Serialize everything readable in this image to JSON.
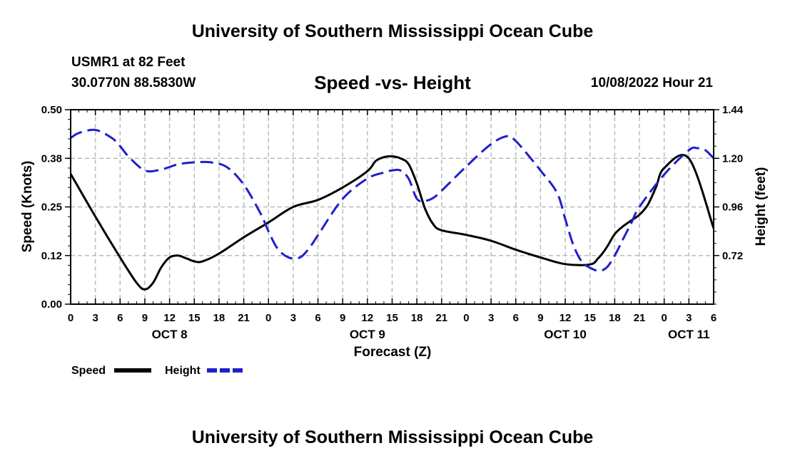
{
  "header": {
    "title": "University of Southern Mississippi Ocean Cube",
    "station": "USMR1 at 82 Feet",
    "coords": "30.0770N  88.5830W",
    "subtitle": "Speed -vs- Height",
    "datetime": "10/08/2022 Hour 21"
  },
  "footer": {
    "title": "University of Southern Mississippi Ocean Cube"
  },
  "colors": {
    "speed": "#000000",
    "height": "#1f1fcc",
    "grid": "#bbbbbb"
  },
  "chart_data": {
    "type": "line",
    "title": "Speed -vs- Height",
    "xlabel": "Forecast (Z)",
    "ylabel": "Speed (Knots)",
    "y2label": "Height (feet)",
    "x_range_hours": [
      0,
      78
    ],
    "x_ticks": [
      0,
      3,
      6,
      9,
      12,
      15,
      18,
      21,
      24,
      27,
      30,
      33,
      36,
      39,
      42,
      45,
      48,
      51,
      54,
      57,
      60,
      63,
      66,
      69,
      72,
      75,
      78
    ],
    "x_tick_labels": [
      "0",
      "3",
      "6",
      "9",
      "12",
      "15",
      "18",
      "21",
      "0",
      "3",
      "6",
      "9",
      "12",
      "15",
      "18",
      "21",
      "0",
      "3",
      "6",
      "9",
      "12",
      "15",
      "18",
      "21",
      "0",
      "3",
      "6"
    ],
    "date_labels": [
      {
        "hour": 12,
        "label": "OCT 8"
      },
      {
        "hour": 36,
        "label": "OCT 9"
      },
      {
        "hour": 60,
        "label": "OCT 10"
      },
      {
        "hour": 75,
        "label": "OCT 11"
      }
    ],
    "y_range": [
      0,
      0.5
    ],
    "y_ticks": [
      0,
      0.125,
      0.25,
      0.375,
      0.5
    ],
    "y_tick_labels": [
      "0.00",
      "0.12",
      "0.25",
      "0.38",
      "0.50"
    ],
    "y2_range": [
      0.48,
      1.44
    ],
    "y2_ticks": [
      0.72,
      0.96,
      1.2,
      1.44
    ],
    "y2_tick_labels": [
      "0.72",
      "0.96",
      "1.20",
      "1.44"
    ],
    "series": [
      {
        "name": "Speed",
        "axis": "left",
        "style": "solid",
        "x": [
          0,
          3,
          6,
          8,
          9,
          10,
          11,
          12,
          13,
          14,
          15,
          16,
          18,
          21,
          24,
          27,
          30,
          33,
          36,
          37,
          38,
          39,
          40,
          41,
          42,
          43,
          44,
          45,
          48,
          51,
          54,
          57,
          60,
          63,
          64,
          65,
          66,
          67,
          68,
          69,
          70,
          71,
          72,
          75,
          78
        ],
        "y": [
          0.335,
          0.225,
          0.12,
          0.055,
          0.038,
          0.055,
          0.095,
          0.12,
          0.125,
          0.118,
          0.11,
          0.11,
          0.13,
          0.172,
          0.21,
          0.25,
          0.268,
          0.3,
          0.342,
          0.368,
          0.378,
          0.38,
          0.375,
          0.36,
          0.31,
          0.245,
          0.205,
          0.19,
          0.178,
          0.163,
          0.14,
          0.12,
          0.103,
          0.102,
          0.118,
          0.145,
          0.18,
          0.2,
          0.215,
          0.23,
          0.255,
          0.3,
          0.35,
          0.375,
          0.195
        ]
      },
      {
        "name": "Height",
        "axis": "right",
        "style": "dashed",
        "x": [
          0,
          1,
          3,
          5,
          6,
          7,
          9,
          11,
          13,
          15,
          17,
          19,
          21,
          23,
          24,
          25,
          26,
          27,
          28,
          29,
          30,
          33,
          36,
          38,
          39,
          40,
          41,
          42,
          43,
          44,
          45,
          48,
          51,
          53,
          54,
          55,
          57,
          59,
          60,
          61,
          62,
          63,
          64,
          65,
          66,
          67,
          68,
          69,
          72,
          75,
          76,
          77,
          78
        ],
        "y": [
          1.3,
          1.325,
          1.34,
          1.3,
          1.26,
          1.21,
          1.14,
          1.145,
          1.17,
          1.18,
          1.18,
          1.155,
          1.07,
          0.93,
          0.84,
          0.76,
          0.72,
          0.705,
          0.715,
          0.76,
          0.82,
          1.0,
          1.1,
          1.13,
          1.14,
          1.14,
          1.1,
          1.0,
          0.99,
          1.005,
          1.04,
          1.16,
          1.27,
          1.31,
          1.285,
          1.24,
          1.14,
          1.03,
          0.9,
          0.77,
          0.69,
          0.66,
          0.645,
          0.66,
          0.72,
          0.8,
          0.88,
          0.96,
          1.12,
          1.24,
          1.25,
          1.24,
          1.2
        ]
      }
    ],
    "legend": [
      {
        "name": "Speed",
        "style": "solid"
      },
      {
        "name": "Height",
        "style": "dashed"
      }
    ],
    "legend_position": "bottom-left",
    "grid": true
  }
}
